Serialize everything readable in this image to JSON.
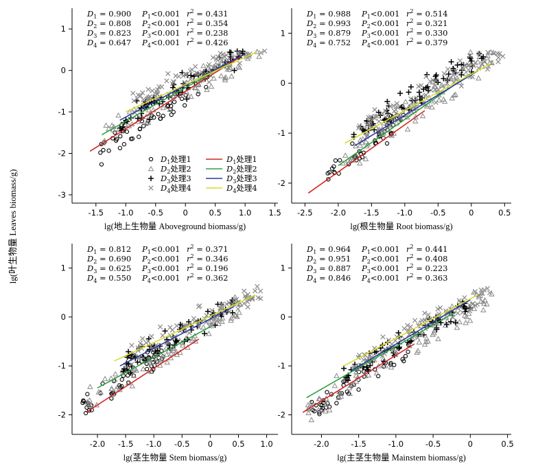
{
  "chart_data": [
    {
      "type": "scatter",
      "xlabel": "lg(地上生物量 Aboveground biomass/g)",
      "ylabel": "lg(叶生物量 Leaves biomass/g)",
      "xlim": [
        -1.9,
        1.55
      ],
      "ylim": [
        -3.2,
        1.5
      ],
      "xticks": [
        -1.5,
        -1.0,
        -0.5,
        0,
        0.5,
        1.0,
        1.5
      ],
      "xtick_labels": [
        "-1.5",
        "-1.0",
        "-0.5",
        "0",
        "0.5",
        "1.0",
        "1.5"
      ],
      "yticks": [
        -3,
        -2,
        -1,
        0,
        1
      ],
      "ytick_labels": [
        "-3",
        "-2",
        "-1",
        "0",
        "1"
      ],
      "stats": [
        {
          "D": "D1 = 0.900",
          "P": "P1<0.001",
          "r2": "r2 = 0.431"
        },
        {
          "D": "D2 = 0.808",
          "P": "P2<0.001",
          "r2": "r2 = 0.354"
        },
        {
          "D": "D3 = 0.823",
          "P": "P3<0.001",
          "r2": "r2 = 0.238"
        },
        {
          "D": "D4 = 0.647",
          "P": "P4<0.001",
          "r2": "r2 = 0.426"
        }
      ],
      "lines": [
        {
          "treatment": 1,
          "x": [
            -1.6,
            1.0
          ],
          "y": [
            -1.95,
            0.4
          ]
        },
        {
          "treatment": 2,
          "x": [
            -1.4,
            0.7
          ],
          "y": [
            -1.55,
            0.15
          ]
        },
        {
          "treatment": 3,
          "x": [
            -1.1,
            1.0
          ],
          "y": [
            -1.2,
            0.4
          ]
        },
        {
          "treatment": 4,
          "x": [
            -1.0,
            1.2
          ],
          "y": [
            -1.0,
            0.45
          ]
        }
      ],
      "clouds": [
        {
          "treatment": 1,
          "x": [
            -1.6,
            0.4
          ],
          "slope": 0.9,
          "anchor": [
            -0.5,
            -1.15
          ],
          "n": 45,
          "spread": 0.28
        },
        {
          "treatment": 2,
          "x": [
            -1.4,
            1.3
          ],
          "slope": 0.8,
          "anchor": [
            0.0,
            -0.45
          ],
          "n": 95,
          "spread": 0.32
        },
        {
          "treatment": 3,
          "x": [
            -1.1,
            1.0
          ],
          "slope": 0.82,
          "anchor": [
            0.0,
            -0.35
          ],
          "n": 75,
          "spread": 0.3
        },
        {
          "treatment": 4,
          "x": [
            -0.9,
            1.5
          ],
          "slope": 0.65,
          "anchor": [
            0.3,
            0.0
          ],
          "n": 90,
          "spread": 0.28
        }
      ]
    },
    {
      "type": "scatter",
      "xlabel": "lg(根生物量 Root biomass/g)",
      "ylabel": "",
      "xlim": [
        -2.7,
        0.6
      ],
      "ylim": [
        -2.4,
        1.5
      ],
      "xticks": [
        -2.5,
        -2.0,
        -1.5,
        -1.0,
        -0.5,
        0,
        0.5
      ],
      "xtick_labels": [
        "-2.5",
        "-2.0",
        "-1.5",
        "-1.0",
        "-0.5",
        "0",
        "0.5"
      ],
      "yticks": [
        -2,
        -1,
        0,
        1
      ],
      "ytick_labels": [
        "-2",
        "-1",
        "0",
        "1"
      ],
      "stats": [
        {
          "D": "D1 = 0.988",
          "P": "P1<0.001",
          "r2": "r2 = 0.514"
        },
        {
          "D": "D2 = 0.993",
          "P": "P2<0.001",
          "r2": "r2 = 0.321"
        },
        {
          "D": "D3 = 0.879",
          "P": "P3<0.001",
          "r2": "r2 = 0.330"
        },
        {
          "D": "D4 = 0.752",
          "P": "P4<0.001",
          "r2": "r2 = 0.379"
        }
      ],
      "lines": [
        {
          "treatment": 1,
          "x": [
            -2.45,
            -0.7
          ],
          "y": [
            -2.2,
            -0.55
          ]
        },
        {
          "treatment": 2,
          "x": [
            -2.0,
            0.0
          ],
          "y": [
            -1.65,
            0.2
          ]
        },
        {
          "treatment": 3,
          "x": [
            -1.75,
            0.1
          ],
          "y": [
            -1.25,
            0.25
          ]
        },
        {
          "treatment": 4,
          "x": [
            -1.9,
            0.3
          ],
          "y": [
            -1.2,
            0.4
          ]
        }
      ],
      "clouds": [
        {
          "treatment": 1,
          "x": [
            -2.2,
            -1.0
          ],
          "slope": 0.99,
          "anchor": [
            -1.5,
            -1.15
          ],
          "n": 50,
          "spread": 0.25
        },
        {
          "treatment": 2,
          "x": [
            -2.0,
            0.4
          ],
          "slope": 0.95,
          "anchor": [
            -1.0,
            -0.65
          ],
          "n": 95,
          "spread": 0.3
        },
        {
          "treatment": 3,
          "x": [
            -1.8,
            0.2
          ],
          "slope": 0.88,
          "anchor": [
            -1.0,
            -0.4
          ],
          "n": 70,
          "spread": 0.25
        },
        {
          "treatment": 4,
          "x": [
            -1.7,
            0.5
          ],
          "slope": 0.75,
          "anchor": [
            -0.8,
            -0.3
          ],
          "n": 90,
          "spread": 0.28
        }
      ]
    },
    {
      "type": "scatter",
      "xlabel": "lg(茎生物量 Stem biomass/g)",
      "ylabel": "",
      "xlim": [
        -2.45,
        1.2
      ],
      "ylim": [
        -2.4,
        1.5
      ],
      "xticks": [
        -2.0,
        -1.5,
        -1.0,
        -0.5,
        0,
        0.5,
        1.0
      ],
      "xtick_labels": [
        "-2.0",
        "-1.5",
        "-1.0",
        "-0.5",
        "0",
        "0.5",
        "1.0"
      ],
      "yticks": [
        -2,
        -1,
        0,
        1
      ],
      "ytick_labels": [
        "-2",
        "-1",
        "0",
        "1"
      ],
      "stats": [
        {
          "D": "D1 = 0.812",
          "P": "P1<0.001",
          "r2": "r2 = 0.371"
        },
        {
          "D": "D2 = 0.690",
          "P": "P2<0.001",
          "r2": "r2 = 0.346"
        },
        {
          "D": "D3 = 0.625",
          "P": "P3<0.001",
          "r2": "r2 = 0.196"
        },
        {
          "D": "D4 = 0.550",
          "P": "P4<0.001",
          "r2": "r2 = 0.362"
        }
      ],
      "lines": [
        {
          "treatment": 1,
          "x": [
            -2.2,
            -0.2
          ],
          "y": [
            -1.95,
            -0.45
          ]
        },
        {
          "treatment": 2,
          "x": [
            -2.0,
            0.0
          ],
          "y": [
            -1.45,
            -0.2
          ]
        },
        {
          "treatment": 3,
          "x": [
            -1.6,
            0.4
          ],
          "y": [
            -1.0,
            0.2
          ]
        },
        {
          "treatment": 4,
          "x": [
            -1.7,
            0.8
          ],
          "y": [
            -0.9,
            0.45
          ]
        }
      ],
      "clouds": [
        {
          "treatment": 1,
          "x": [
            -2.3,
            -0.8
          ],
          "slope": 0.8,
          "anchor": [
            -1.5,
            -1.3
          ],
          "n": 50,
          "spread": 0.25
        },
        {
          "treatment": 2,
          "x": [
            -2.2,
            0.6
          ],
          "slope": 0.7,
          "anchor": [
            -0.8,
            -0.75
          ],
          "n": 95,
          "spread": 0.3
        },
        {
          "treatment": 3,
          "x": [
            -1.6,
            0.5
          ],
          "slope": 0.63,
          "anchor": [
            -0.6,
            -0.4
          ],
          "n": 70,
          "spread": 0.26
        },
        {
          "treatment": 4,
          "x": [
            -1.4,
            0.9
          ],
          "slope": 0.55,
          "anchor": [
            -0.2,
            -0.1
          ],
          "n": 90,
          "spread": 0.26
        }
      ]
    },
    {
      "type": "scatter",
      "xlabel": "lg(主茎生物量 Mainstem biomass/g)",
      "ylabel": "",
      "xlim": [
        -2.4,
        0.55
      ],
      "ylim": [
        -2.4,
        1.5
      ],
      "xticks": [
        -2.0,
        -1.5,
        -1.0,
        -0.5,
        0,
        0.5
      ],
      "xtick_labels": [
        "-2.0",
        "-1.5",
        "-1.0",
        "-0.5",
        "0",
        "0.5"
      ],
      "yticks": [
        -2,
        -1,
        0,
        1
      ],
      "ytick_labels": [
        "-2",
        "-1",
        "0",
        "1"
      ],
      "stats": [
        {
          "D": "D1 = 0.964",
          "P": "P1<0.001",
          "r2": "r2 = 0.441"
        },
        {
          "D": "D2 = 0.951",
          "P": "P2<0.001",
          "r2": "r2 = 0.408"
        },
        {
          "D": "D3 = 0.887",
          "P": "P3<0.001",
          "r2": "r2 = 0.223"
        },
        {
          "D": "D4 = 0.846",
          "P": "P4<0.001",
          "r2": "r2 = 0.363"
        }
      ],
      "lines": [
        {
          "treatment": 1,
          "x": [
            -2.25,
            -0.75
          ],
          "y": [
            -1.95,
            -0.55
          ]
        },
        {
          "treatment": 2,
          "x": [
            -2.2,
            -0.2
          ],
          "y": [
            -1.65,
            0.1
          ]
        },
        {
          "treatment": 3,
          "x": [
            -1.6,
            0.0
          ],
          "y": [
            -1.1,
            0.35
          ]
        },
        {
          "treatment": 4,
          "x": [
            -1.7,
            0.1
          ],
          "y": [
            -1.0,
            0.45
          ]
        }
      ],
      "clouds": [
        {
          "treatment": 1,
          "x": [
            -2.2,
            -0.8
          ],
          "slope": 0.95,
          "anchor": [
            -1.5,
            -1.3
          ],
          "n": 50,
          "spread": 0.25
        },
        {
          "treatment": 2,
          "x": [
            -2.2,
            0.35
          ],
          "slope": 0.95,
          "anchor": [
            -1.0,
            -0.75
          ],
          "n": 95,
          "spread": 0.3
        },
        {
          "treatment": 3,
          "x": [
            -1.7,
            0.0
          ],
          "slope": 0.89,
          "anchor": [
            -0.8,
            -0.4
          ],
          "n": 70,
          "spread": 0.25
        },
        {
          "treatment": 4,
          "x": [
            -1.6,
            0.3
          ],
          "slope": 0.85,
          "anchor": [
            -0.5,
            -0.1
          ],
          "n": 90,
          "spread": 0.26
        }
      ]
    }
  ],
  "legend": {
    "placement": "lower-right of first panel",
    "points": [
      {
        "treatment": 1,
        "label": "D1处理1",
        "marker": "circle"
      },
      {
        "treatment": 2,
        "label": "D2处理2",
        "marker": "triangle"
      },
      {
        "treatment": 3,
        "label": "D3处理3",
        "marker": "plus"
      },
      {
        "treatment": 4,
        "label": "D4处理4",
        "marker": "cross"
      }
    ],
    "lines": [
      {
        "treatment": 1,
        "label": "D1处理1"
      },
      {
        "treatment": 2,
        "label": "D2处理2"
      },
      {
        "treatment": 3,
        "label": "D3处理3"
      },
      {
        "treatment": 4,
        "label": "D4处理4"
      }
    ]
  },
  "shared_ylabel": "lg(叶生物量 Leaves biomass/g)",
  "colors": {
    "line1": "#d2251f",
    "line2": "#2fa041",
    "line3": "#2a3a9a",
    "line4": "#d8dc2a",
    "marker1": "#000000",
    "marker2": "#8a8a8a",
    "marker3": "#000000",
    "marker4": "#8a8a8a",
    "axis": "#000000"
  }
}
